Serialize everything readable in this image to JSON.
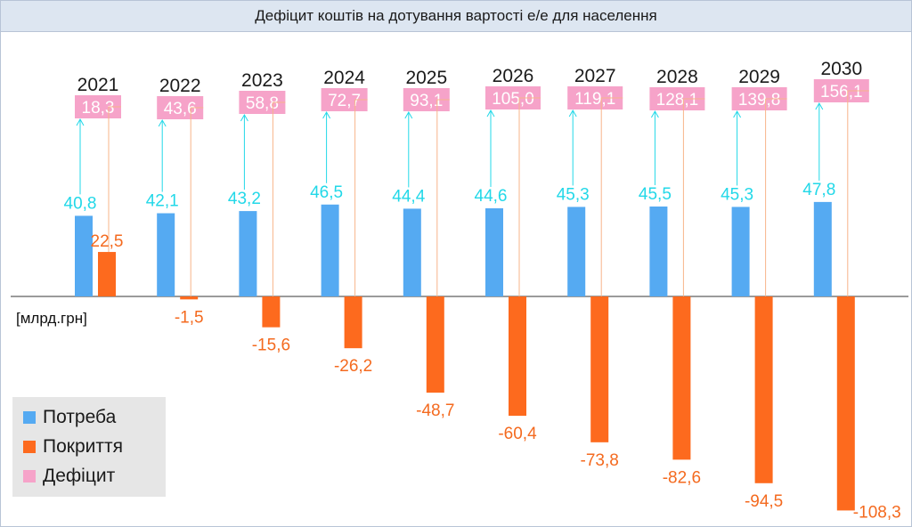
{
  "chart_data": {
    "type": "bar",
    "title": "Дефіцит коштів на дотування вартості е/е для населення",
    "unit_label": "[млрд.грн]",
    "categories": [
      "2021",
      "2022",
      "2023",
      "2024",
      "2025",
      "2026",
      "2027",
      "2028",
      "2029",
      "2030"
    ],
    "series": [
      {
        "name": "Потреба",
        "color": "#55aaf2",
        "values": [
          40.8,
          42.1,
          43.2,
          46.5,
          44.4,
          44.6,
          45.3,
          45.5,
          45.3,
          47.8
        ],
        "labels": [
          "40,8",
          "42,1",
          "43,2",
          "46,5",
          "44,4",
          "44,6",
          "45,3",
          "45,5",
          "45,3",
          "47,8"
        ]
      },
      {
        "name": "Покриття",
        "color": "#fd6a1e",
        "values": [
          22.5,
          -1.5,
          -15.6,
          -26.2,
          -48.7,
          -60.4,
          -73.8,
          -82.6,
          -94.5,
          -108.3
        ],
        "labels": [
          "22,5",
          "-1,5",
          "-15,6",
          "-26,2",
          "-48,7",
          "-60,4",
          "-73,8",
          "-82,6",
          "-94,5",
          "-108,3"
        ]
      },
      {
        "name": "Дефіцит",
        "color": "#f6a3c9",
        "values": [
          18.3,
          43.6,
          58.8,
          72.7,
          93.1,
          105.0,
          119.1,
          128.1,
          139.8,
          156.1
        ],
        "labels": [
          "18,3",
          "43,6",
          "58,8",
          "72,7",
          "93,1",
          "105,0",
          "119,1",
          "128,1",
          "139,8",
          "156,1"
        ]
      }
    ],
    "colors": {
      "potreba_label": "#22d8e8",
      "pokryttia_label": "#f46a1f",
      "axis": "#7a7a7a",
      "connector_blue": "#22d8e8",
      "connector_orange": "#f7b48a"
    },
    "legend_position": "bottom-left",
    "grid": false
  }
}
